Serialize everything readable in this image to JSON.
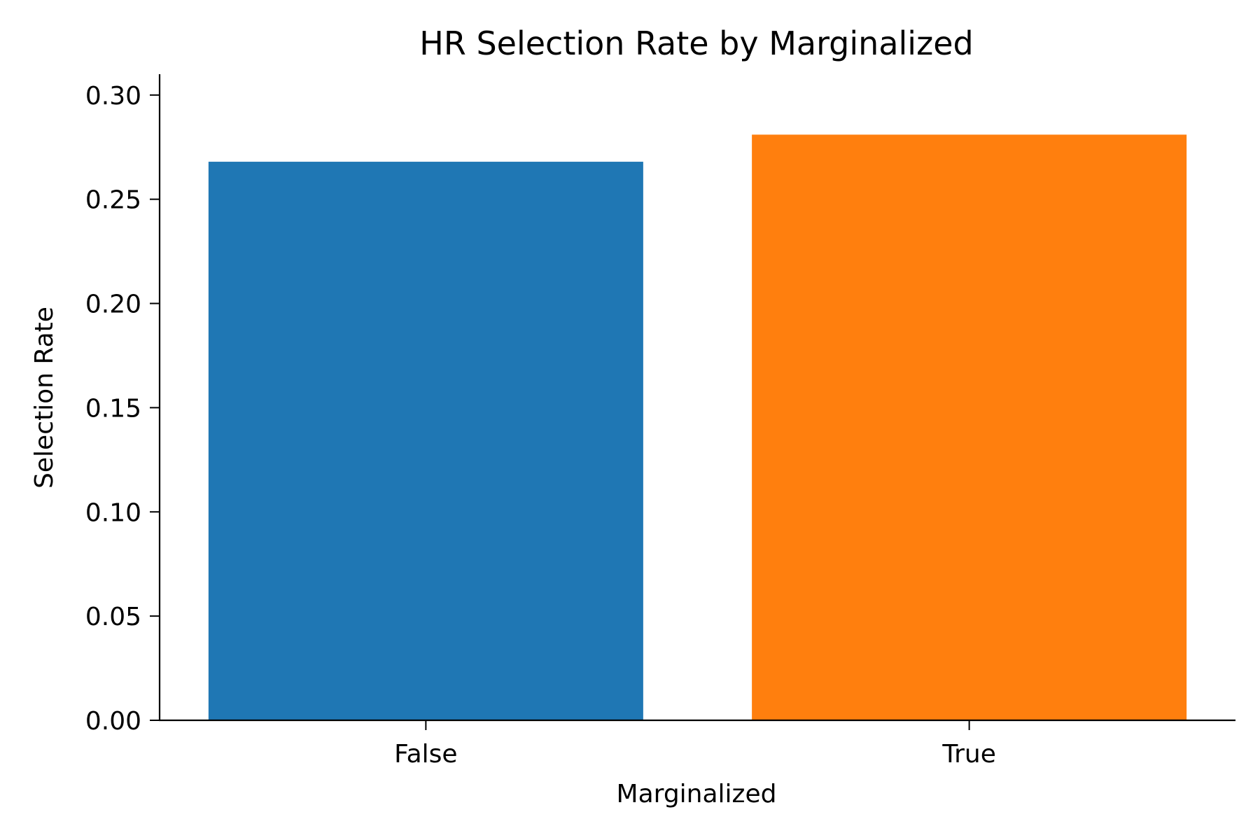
{
  "chart_data": {
    "type": "bar",
    "title": "HR Selection Rate by Marginalized",
    "xlabel": "Marginalized",
    "ylabel": "Selection Rate",
    "categories": [
      "False",
      "True"
    ],
    "values": [
      0.268,
      0.281
    ],
    "colors": [
      "#1f77b4",
      "#ff7f0e"
    ],
    "ylim": [
      0,
      0.31
    ],
    "yticks": [
      0.0,
      0.05,
      0.1,
      0.15,
      0.2,
      0.25,
      0.3
    ],
    "ytick_labels": [
      "0.00",
      "0.05",
      "0.10",
      "0.15",
      "0.20",
      "0.25",
      "0.30"
    ],
    "grid": false,
    "legend": "none"
  }
}
